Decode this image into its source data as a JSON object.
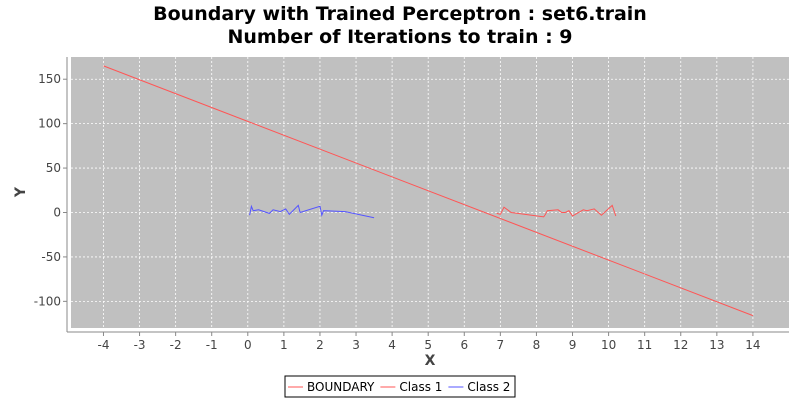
{
  "chart_data": {
    "type": "line",
    "title": [
      "Boundary with Trained Perceptron : set6.train",
      "Number of Iterations to train : 9"
    ],
    "xlabel": "X",
    "ylabel": "Y",
    "xlim": [
      -4.9,
      15.0
    ],
    "ylim": [
      -130,
      175
    ],
    "xticks": [
      -4,
      -3,
      -2,
      -1,
      0,
      1,
      2,
      3,
      4,
      5,
      6,
      7,
      8,
      9,
      10,
      11,
      12,
      13,
      14
    ],
    "yticks": [
      -100,
      -50,
      0,
      50,
      100,
      150
    ],
    "grid": true,
    "legend_position": "bottom-center",
    "plot_background": "#c0c0c0",
    "series": [
      {
        "name": "BOUNDARY",
        "color": "#ff5555",
        "x": [
          -4,
          14
        ],
        "y": [
          165,
          -116
        ]
      },
      {
        "name": "Class 1",
        "color": "#ff5555",
        "x": [
          6.9,
          7.0,
          7.1,
          7.3,
          8.2,
          8.25,
          8.3,
          8.6,
          8.7,
          8.8,
          8.9,
          9.0,
          9.3,
          9.4,
          9.5,
          9.6,
          9.8,
          10.1,
          10.2
        ],
        "y": [
          -1,
          -2,
          6,
          0,
          -5,
          -2,
          2,
          3,
          0,
          0,
          2,
          -4,
          3,
          2,
          3,
          4,
          -3,
          8,
          -4
        ]
      },
      {
        "name": "Class 2",
        "color": "#5555ff",
        "x": [
          0.05,
          0.1,
          0.15,
          0.3,
          0.6,
          0.7,
          0.9,
          1.05,
          1.15,
          1.4,
          1.45,
          2.0,
          2.05,
          2.1,
          2.7,
          3.5
        ],
        "y": [
          -3,
          7,
          2,
          3,
          -1,
          3,
          1,
          4,
          -2,
          8,
          0,
          7,
          -3,
          2,
          1,
          -6
        ]
      }
    ]
  }
}
